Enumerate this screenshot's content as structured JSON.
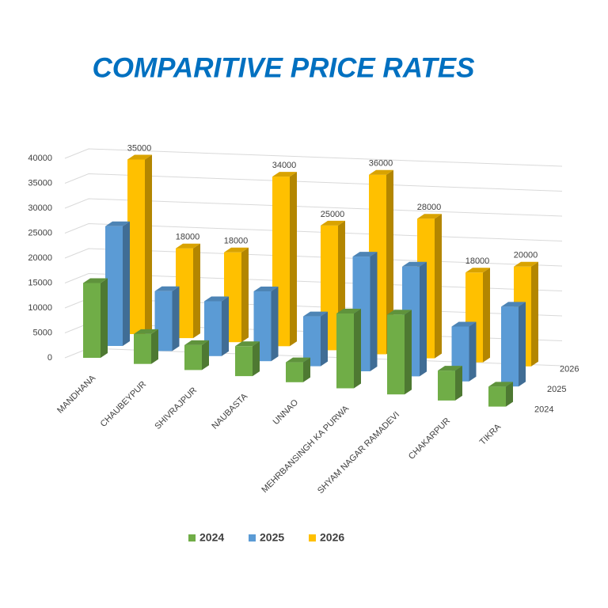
{
  "chart_data": {
    "type": "bar3d",
    "title": "COMPARITIVE PRICE RATES",
    "categories": [
      "MANDHANA",
      "CHAUBEYPUR",
      "SHIVRAJPUR",
      "NAUBASTA",
      "UNNAO",
      "MEHRBANSINGH KA PURWA",
      "SHYAM NAGAR RAMADEVI",
      "CHAKARPUR",
      "TIKRA"
    ],
    "series": [
      {
        "name": "2024",
        "color": "#70ad47",
        "values": [
          15000,
          6000,
          5000,
          6000,
          4000,
          15000,
          16000,
          6000,
          4000
        ],
        "show_labels": false
      },
      {
        "name": "2025",
        "color": "#5b9bd5",
        "values": [
          24000,
          12000,
          11000,
          14000,
          10000,
          23000,
          22000,
          11000,
          16000
        ],
        "show_labels": false
      },
      {
        "name": "2026",
        "color": "#ffc000",
        "values": [
          35000,
          18000,
          18000,
          34000,
          25000,
          36000,
          28000,
          18000,
          20000
        ],
        "show_labels": true
      }
    ],
    "ylim": [
      0,
      40000
    ],
    "yticks": [
      0,
      5000,
      10000,
      15000,
      20000,
      25000,
      30000,
      35000,
      40000
    ],
    "grid": true,
    "legend": "bottom"
  }
}
